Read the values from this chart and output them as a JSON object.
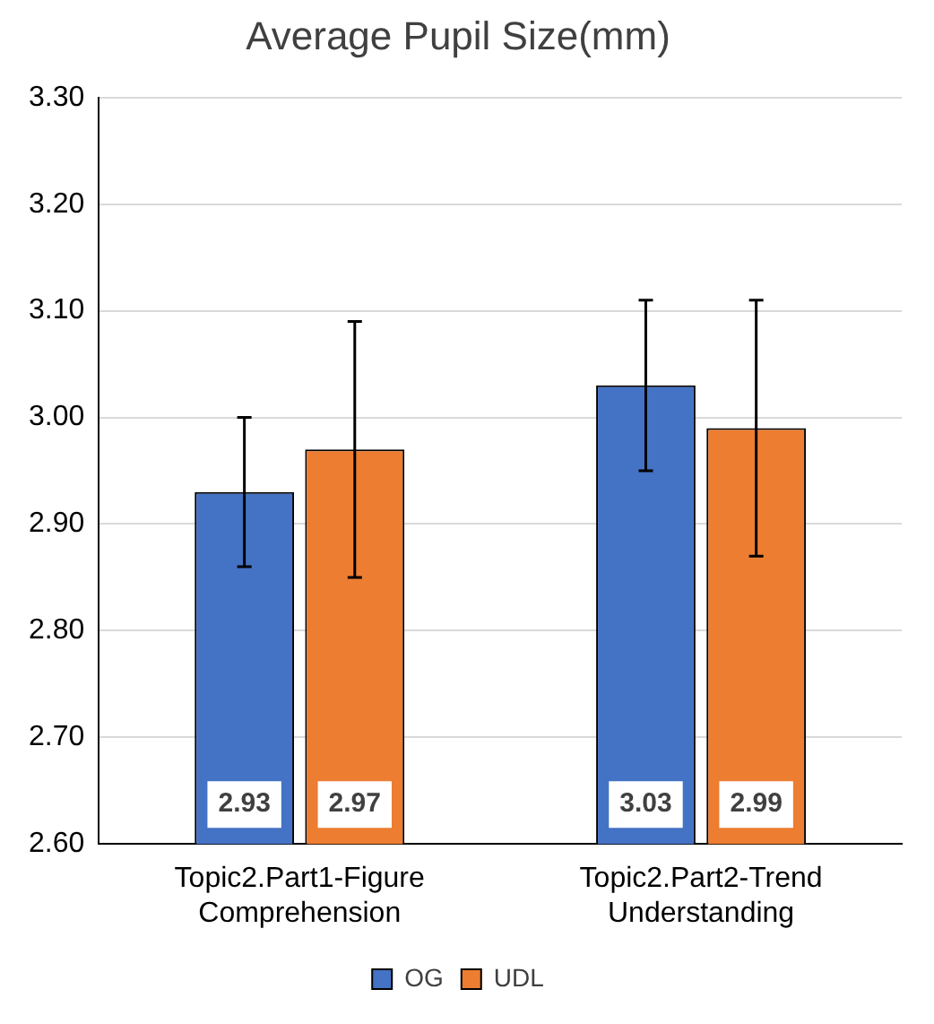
{
  "chart_data": {
    "type": "bar",
    "title": "Average Pupil Size(mm)",
    "categories": [
      "Topic2.Part1-Figure Comprehension",
      "Topic2.Part2-Trend Understanding"
    ],
    "series": [
      {
        "name": "OG",
        "color": "#4472c4",
        "values": [
          2.93,
          3.03
        ],
        "errors": [
          0.07,
          0.08
        ]
      },
      {
        "name": "UDL",
        "color": "#ed7d31",
        "values": [
          2.97,
          2.99
        ],
        "errors": [
          0.12,
          0.12
        ]
      }
    ],
    "ylim": [
      2.6,
      3.3
    ],
    "yticks": [
      {
        "value": 2.6,
        "label": "2.60"
      },
      {
        "value": 2.7,
        "label": "2.70"
      },
      {
        "value": 2.8,
        "label": "2.80"
      },
      {
        "value": 2.9,
        "label": "2.90"
      },
      {
        "value": 3.0,
        "label": "3.00"
      },
      {
        "value": 3.1,
        "label": "3.10"
      },
      {
        "value": 3.2,
        "label": "3.20"
      },
      {
        "value": 3.3,
        "label": "3.30"
      }
    ],
    "grid": "y",
    "legend": "bottom",
    "data_labels": true
  }
}
